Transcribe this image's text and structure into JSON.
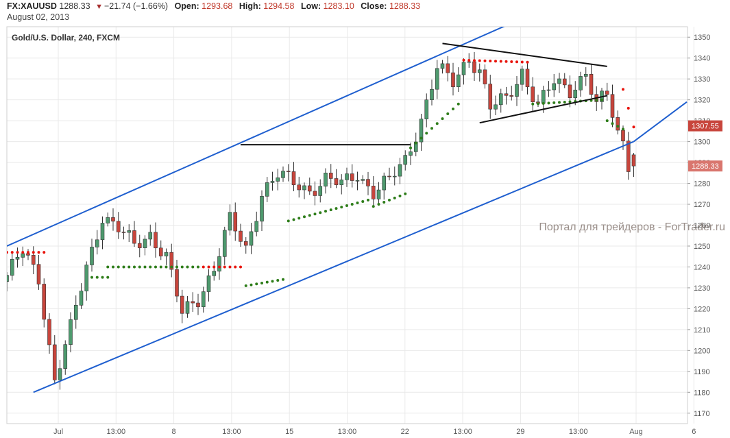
{
  "header": {
    "symbol": "FX:XAUUSD",
    "last": "1288.33",
    "change_arrow": "▼",
    "change": "−21.74 (−1.66%)",
    "open_label": "Open:",
    "open_value": "1293.68",
    "high_label": "High:",
    "high_value": "1294.58",
    "low_label": "Low:",
    "low_value": "1283.10",
    "close_label": "Close:",
    "close_value": "1288.33",
    "date": "August 02, 2013"
  },
  "watermark": "Портал для трейдеров - ForTrader.ru",
  "colors": {
    "up_candle": "#4e9a6e",
    "down_candle": "#c8453c",
    "channel_line": "#1f5fcf",
    "drawing_line": "#111111",
    "sar_up": "#2e7d1a",
    "sar_down": "#e8140c",
    "badge_high": "#c8453c",
    "badge_last": "#d9766e",
    "grid": "#e9e9e9"
  },
  "chart_data": {
    "type": "candlestick",
    "title": "Gold/U.S. Dollar, 240, FXCM",
    "x_tick_labels": [
      "Jul",
      "13:00",
      "8",
      "13:00",
      "15",
      "13:00",
      "22",
      "13:00",
      "29",
      "13:00",
      "Aug",
      "6"
    ],
    "ylim": [
      1165,
      1355
    ],
    "y_ticks": [
      1170,
      1180,
      1190,
      1200,
      1210,
      1220,
      1230,
      1240,
      1250,
      1260,
      1270,
      1280,
      1290,
      1300,
      1310,
      1320,
      1330,
      1340,
      1350
    ],
    "grid": true,
    "price_badges": [
      {
        "value": 1307.55,
        "text": "1307.55"
      },
      {
        "value": 1288.33,
        "text": "1288.33"
      }
    ],
    "anchors": [
      [
        0,
        1236
      ],
      [
        3,
        1247
      ],
      [
        6,
        1235
      ],
      [
        9,
        1186
      ],
      [
        12,
        1210
      ],
      [
        15,
        1240
      ],
      [
        18,
        1265
      ],
      [
        21,
        1258
      ],
      [
        24,
        1250
      ],
      [
        27,
        1256
      ],
      [
        30,
        1245
      ],
      [
        33,
        1217
      ],
      [
        36,
        1225
      ],
      [
        39,
        1240
      ],
      [
        42,
        1262
      ],
      [
        45,
        1248
      ],
      [
        48,
        1276
      ],
      [
        51,
        1284
      ],
      [
        54,
        1280
      ],
      [
        57,
        1277
      ],
      [
        60,
        1282
      ],
      [
        63,
        1279
      ],
      [
        66,
        1285
      ],
      [
        69,
        1276
      ],
      [
        72,
        1281
      ],
      [
        75,
        1291
      ],
      [
        78,
        1311
      ],
      [
        81,
        1335
      ],
      [
        84,
        1328
      ],
      [
        87,
        1341
      ],
      [
        89,
        1334
      ],
      [
        91,
        1316
      ],
      [
        94,
        1320
      ],
      [
        97,
        1334
      ],
      [
        100,
        1317
      ],
      [
        103,
        1328
      ],
      [
        106,
        1325
      ],
      [
        109,
        1333
      ],
      [
        111,
        1317
      ],
      [
        113,
        1322
      ],
      [
        115,
        1304
      ],
      [
        116,
        1300
      ],
      [
        117,
        1290
      ],
      [
        118,
        1288.33
      ]
    ],
    "sar_segments": [
      {
        "trend": "down",
        "from": 0,
        "to": 7,
        "start": 1247,
        "end": 1247
      },
      {
        "trend": "up",
        "from": 16,
        "to": 19,
        "start": 1235,
        "end": 1235
      },
      {
        "trend": "up",
        "from": 19,
        "to": 36,
        "start": 1240,
        "end": 1240
      },
      {
        "trend": "down",
        "from": 37,
        "to": 44,
        "start": 1240,
        "end": 1240
      },
      {
        "trend": "up",
        "from": 45,
        "to": 52,
        "start": 1231,
        "end": 1234
      },
      {
        "trend": "up",
        "from": 53,
        "to": 68,
        "start": 1262,
        "end": 1272
      },
      {
        "trend": "up",
        "from": 69,
        "to": 75,
        "start": 1269,
        "end": 1275
      },
      {
        "trend": "up",
        "from": 76,
        "to": 85,
        "start": 1297,
        "end": 1318
      },
      {
        "trend": "down",
        "from": 86,
        "to": 98,
        "start": 1339,
        "end": 1338
      },
      {
        "trend": "up",
        "from": 99,
        "to": 112,
        "start": 1318,
        "end": 1320
      },
      {
        "trend": "up",
        "from": 113,
        "to": 116,
        "start": 1310,
        "end": 1306
      },
      {
        "trend": "down",
        "from": 116,
        "to": 118,
        "start": 1325,
        "end": 1307
      }
    ],
    "annotations": {
      "channel_upper": [
        [
          0,
          1250
        ],
        [
          97,
          1359
        ]
      ],
      "channel_lower": [
        [
          5,
          1180
        ],
        [
          118,
          1300
        ]
      ],
      "channel_lower_extension": [
        [
          118,
          1300
        ],
        [
          128,
          1319
        ]
      ],
      "resistance": [
        [
          44,
          1298.5
        ],
        [
          76,
          1298.5
        ]
      ],
      "triangle_top": [
        [
          82,
          1347
        ],
        [
          113,
          1336
        ]
      ],
      "triangle_bottom": [
        [
          89,
          1309
        ],
        [
          113,
          1322
        ]
      ]
    }
  }
}
